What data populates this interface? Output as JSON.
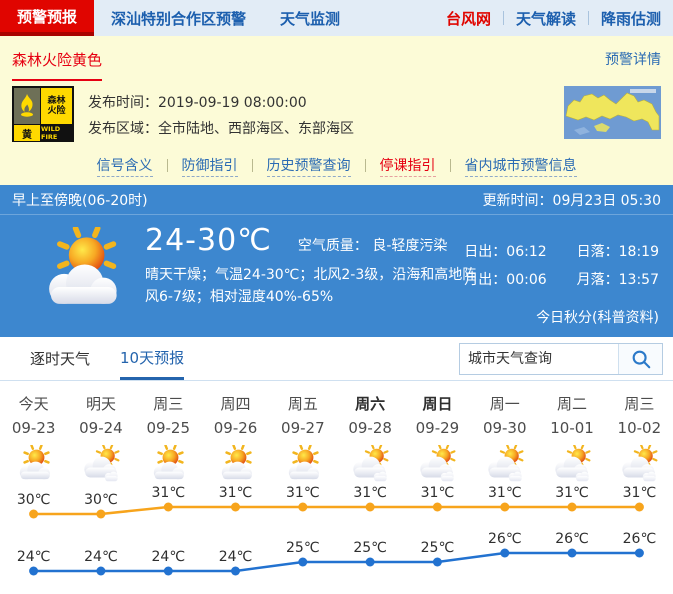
{
  "nav": {
    "tabs": [
      {
        "label": "预警预报",
        "active": true
      },
      {
        "label": "深汕特别合作区预警",
        "active": false
      },
      {
        "label": "天气监测",
        "active": false
      }
    ],
    "links": [
      {
        "label": "台风网",
        "highlight": true
      },
      {
        "label": "天气解读",
        "highlight": false
      },
      {
        "label": "降雨估测",
        "highlight": false
      }
    ]
  },
  "warning": {
    "title": "森林火险黄色",
    "details_link": "预警详情",
    "badge": {
      "name_line1": "森林",
      "name_line2": "火险",
      "level": "黄",
      "en": "WILD FIRE"
    },
    "publish_time_label": "发布时间：",
    "publish_time": "2019-09-19 08:00:00",
    "publish_area_label": "发布区域：",
    "publish_area": "全市陆地、西部海区、东部海区",
    "links": [
      "信号含义",
      "防御指引",
      "历史预警查询",
      "停课指引",
      "省内城市预警信息"
    ]
  },
  "current": {
    "period": "早上至傍晚(06-20时)",
    "update_time": "更新时间：09月23日 05:30",
    "temp_range": "24-30℃",
    "air_quality_label": "空气质量：",
    "air_quality_value": "良-轻度污染",
    "description": "晴天干燥；气温24-30℃；北风2-3级，沿海和高地阵风6-7级；相对湿度40%-65%",
    "sun_moon": [
      {
        "label": "日出：",
        "value": "06:12"
      },
      {
        "label": "日落：",
        "value": "18:19"
      },
      {
        "label": "月出：",
        "value": "00:06"
      },
      {
        "label": "月落：",
        "value": "13:57"
      }
    ],
    "solar_term": "今日秋分(科普资料)"
  },
  "forecast_tabs": {
    "hourly": "逐时天气",
    "ten_day": "10天预报"
  },
  "search": {
    "placeholder": "城市天气查询"
  },
  "chart_data": {
    "type": "line",
    "categories": [
      "今天",
      "明天",
      "周三",
      "周四",
      "周五",
      "周六",
      "周日",
      "周一",
      "周二",
      "周三"
    ],
    "dates": [
      "09-23",
      "09-24",
      "09-25",
      "09-26",
      "09-27",
      "09-28",
      "09-29",
      "09-30",
      "10-01",
      "10-02"
    ],
    "weekend_indices": [
      5,
      6
    ],
    "icons": [
      "partly-cloudy",
      "cloudy",
      "partly-cloudy",
      "partly-cloudy",
      "partly-cloudy",
      "cloudy",
      "cloudy",
      "cloudy",
      "cloudy",
      "cloudy"
    ],
    "unit": "℃",
    "series": [
      {
        "name": "high",
        "color": "#f7a41c",
        "values": [
          30,
          30,
          31,
          31,
          31,
          31,
          31,
          31,
          31,
          31
        ]
      },
      {
        "name": "low",
        "color": "#2272d0",
        "values": [
          24,
          24,
          24,
          24,
          25,
          25,
          25,
          26,
          26,
          26
        ]
      }
    ],
    "legend_position": "none",
    "grid": false
  },
  "colors": {
    "accent_red": "#e00500",
    "accent_blue": "#2b6bb3",
    "panel_blue": "#3d87cf",
    "warning_yellow": "#fcfbd7",
    "high_line": "#f7a41c",
    "low_line": "#2272d0"
  }
}
